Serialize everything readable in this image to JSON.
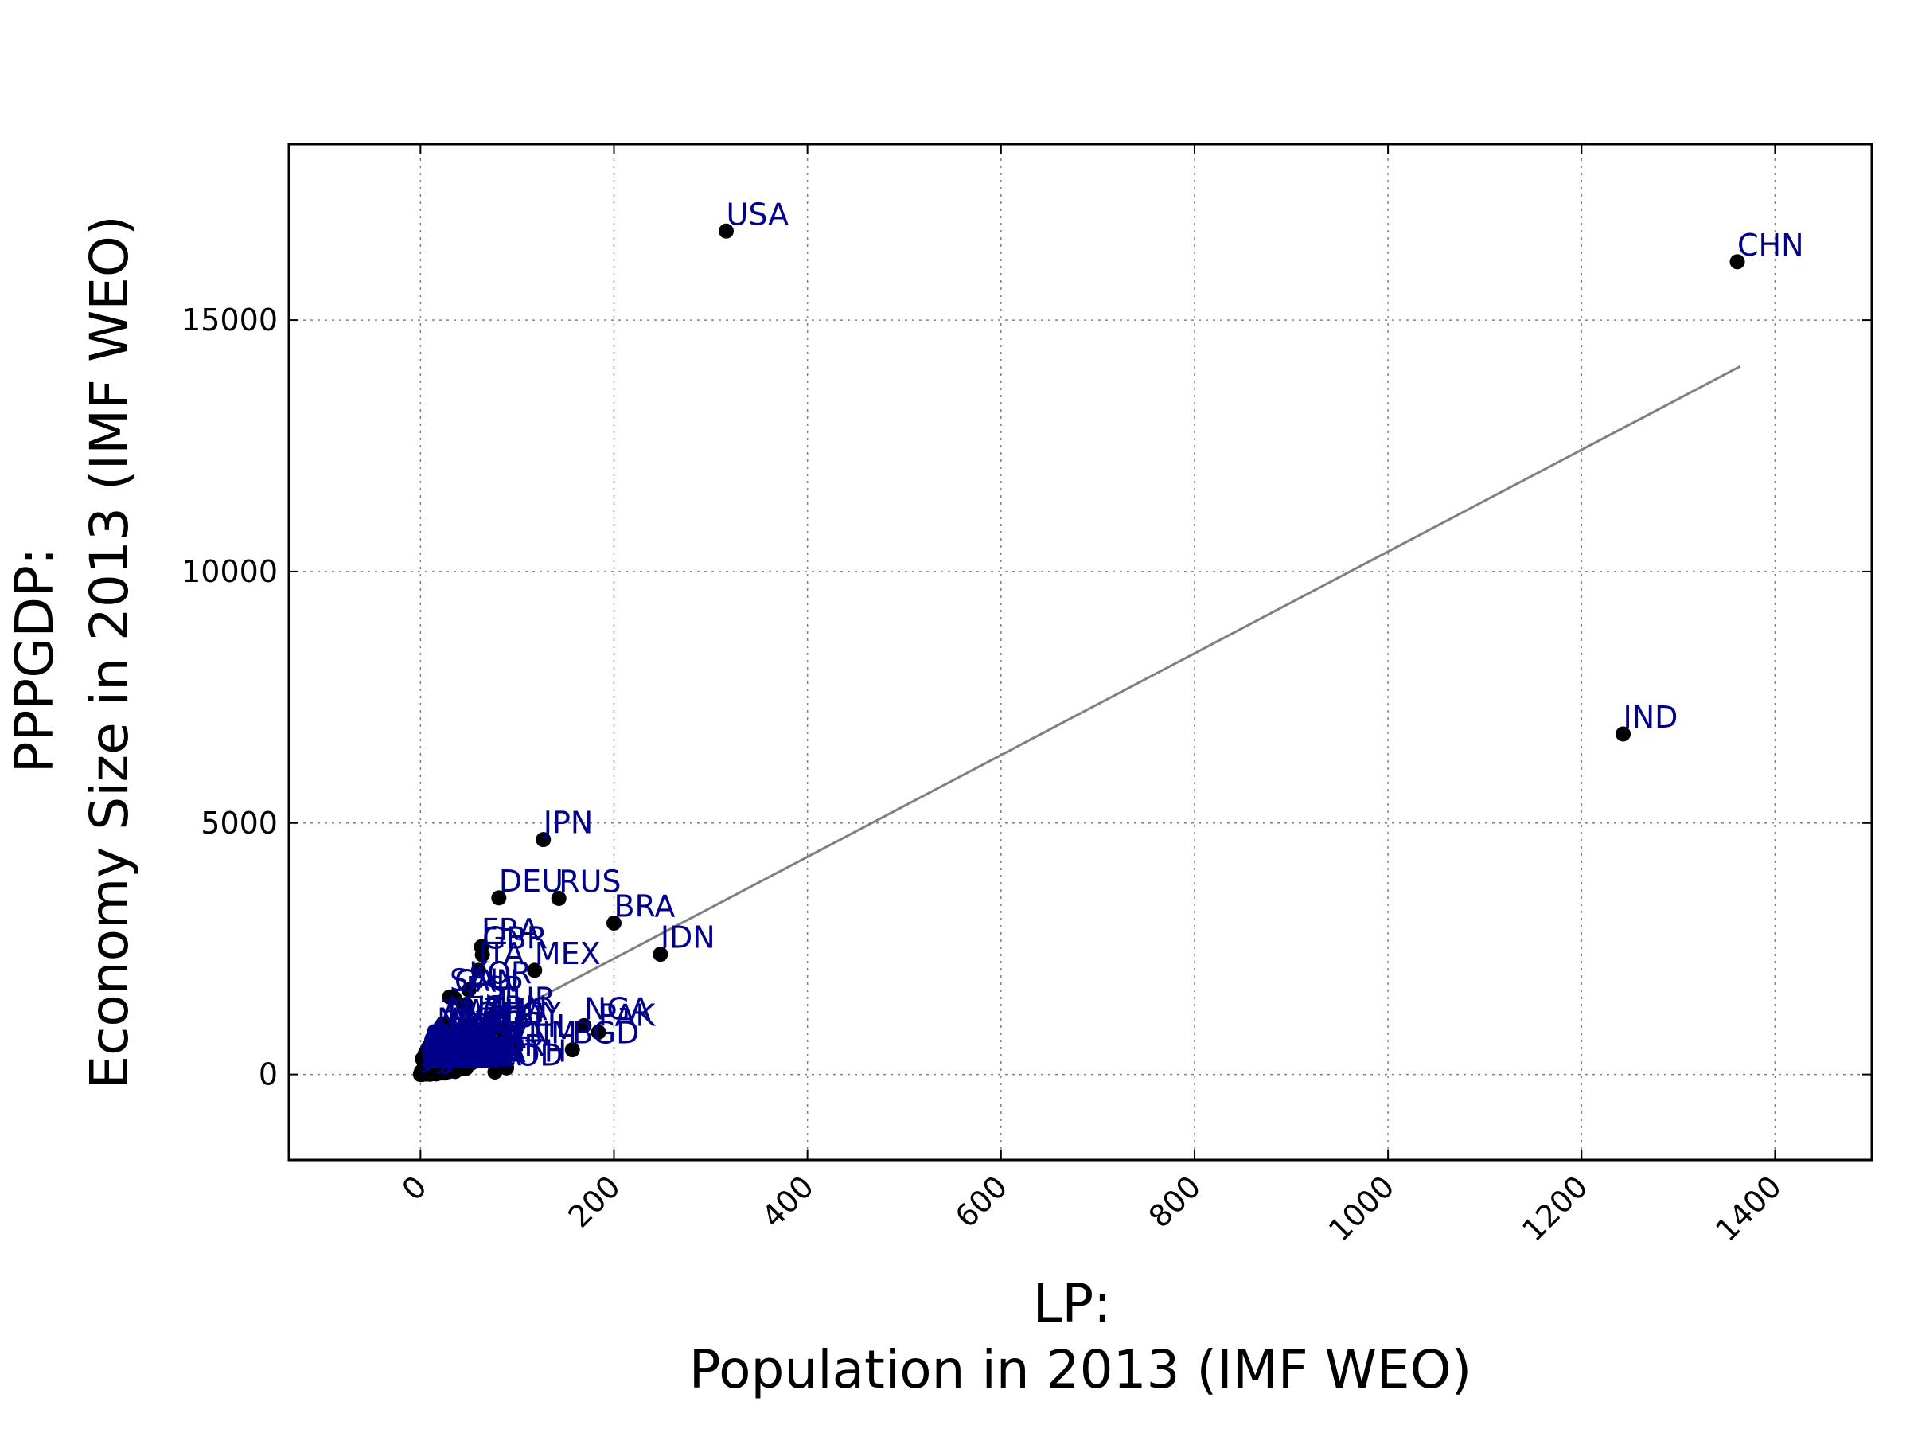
{
  "chart_data": {
    "type": "scatter",
    "xlabel_lines": [
      "LP:",
      "Population in 2013 (IMF WEO)"
    ],
    "ylabel_lines": [
      "PPPGDP:",
      "Economy Size in 2013 (IMF WEO)"
    ],
    "xlim": [
      -136,
      1500
    ],
    "ylim": [
      -1700,
      18500
    ],
    "xticks": [
      0,
      200,
      400,
      600,
      800,
      1000,
      1200,
      1400
    ],
    "yticks": [
      0,
      5000,
      10000,
      15000
    ],
    "grid": true,
    "colors": {
      "points": "#000000",
      "labels": "#00008b",
      "fit_line": "#808080",
      "axes": "#000000",
      "grid": "#808080"
    },
    "fit_line": {
      "x": [
        0,
        1364
      ],
      "y": [
        280,
        14080
      ]
    },
    "points": [
      {
        "label": "USA",
        "x": 316,
        "y": 16770
      },
      {
        "label": "CHN",
        "x": 1361,
        "y": 16160
      },
      {
        "label": "IND",
        "x": 1243,
        "y": 6770
      },
      {
        "label": "JPN",
        "x": 127,
        "y": 4670
      },
      {
        "label": "DEU",
        "x": 81,
        "y": 3510
      },
      {
        "label": "RUS",
        "x": 143,
        "y": 3500
      },
      {
        "label": "BRA",
        "x": 200,
        "y": 3010
      },
      {
        "label": "IDN",
        "x": 248,
        "y": 2390
      },
      {
        "label": "FRA",
        "x": 63,
        "y": 2540
      },
      {
        "label": "GBR",
        "x": 64,
        "y": 2380
      },
      {
        "label": "MEX",
        "x": 118,
        "y": 2070
      },
      {
        "label": "ITA",
        "x": 60,
        "y": 2070
      },
      {
        "label": "KOR",
        "x": 50,
        "y": 1680
      },
      {
        "label": "SAU",
        "x": 30,
        "y": 1540
      },
      {
        "label": "ESP",
        "x": 47,
        "y": 1390
      },
      {
        "label": "CAN",
        "x": 35,
        "y": 1520
      },
      {
        "label": "TUR",
        "x": 76,
        "y": 1170
      },
      {
        "label": "IRN",
        "x": 77,
        "y": 1000
      },
      {
        "label": "NGA",
        "x": 169,
        "y": 970
      },
      {
        "label": "PAK",
        "x": 184,
        "y": 840
      },
      {
        "label": "BGD",
        "x": 157,
        "y": 490
      },
      {
        "label": "THA",
        "x": 67,
        "y": 960
      },
      {
        "label": "EGY",
        "x": 84,
        "y": 880
      },
      {
        "label": "PHL",
        "x": 98,
        "y": 630
      },
      {
        "label": "VNM",
        "x": 90,
        "y": 490
      },
      {
        "label": "ETH",
        "x": 89,
        "y": 130
      },
      {
        "label": "COD",
        "x": 77,
        "y": 50
      },
      {
        "label": "ARG",
        "x": 42,
        "y": 770
      },
      {
        "label": "POL",
        "x": 38,
        "y": 880
      },
      {
        "label": "COL",
        "x": 48,
        "y": 580
      },
      {
        "label": "ZAF",
        "x": 53,
        "y": 650
      },
      {
        "label": "MYS",
        "x": 30,
        "y": 690
      },
      {
        "label": "AUS",
        "x": 23,
        "y": 1000
      },
      {
        "label": "TWN",
        "x": 23,
        "y": 930
      },
      {
        "label": "NLD",
        "x": 17,
        "y": 760
      },
      {
        "label": "UKR",
        "x": 45,
        "y": 400
      },
      {
        "label": "DZA",
        "x": 38,
        "y": 500
      },
      {
        "label": "PER",
        "x": 31,
        "y": 350
      },
      {
        "label": "VEN",
        "x": 30,
        "y": 540
      },
      {
        "label": "MAR",
        "x": 33,
        "y": 240
      },
      {
        "label": "UZB",
        "x": 30,
        "y": 160
      },
      {
        "label": "IRQ",
        "x": 35,
        "y": 500
      },
      {
        "label": "KEN",
        "x": 44,
        "y": 120
      },
      {
        "label": "TZA",
        "x": 47,
        "y": 120
      },
      {
        "label": "SDN",
        "x": 38,
        "y": 160
      },
      {
        "label": "MMR",
        "x": 53,
        "y": 230
      },
      {
        "label": "AFG",
        "x": 30,
        "y": 60
      },
      {
        "label": "UGA",
        "x": 36,
        "y": 60
      },
      {
        "label": "NPL",
        "x": 27,
        "y": 60
      },
      {
        "label": "GHA",
        "x": 26,
        "y": 100
      },
      {
        "label": "MOZ",
        "x": 25,
        "y": 30
      },
      {
        "label": "CHL",
        "x": 18,
        "y": 380
      },
      {
        "label": "ROU",
        "x": 20,
        "y": 370
      },
      {
        "label": "KAZ",
        "x": 17,
        "y": 390
      },
      {
        "label": "SWE",
        "x": 10,
        "y": 420
      },
      {
        "label": "BEL",
        "x": 11,
        "y": 460
      },
      {
        "label": "CHE",
        "x": 8,
        "y": 430
      },
      {
        "label": "AUT",
        "x": 8,
        "y": 370
      },
      {
        "label": "ARE",
        "x": 9,
        "y": 560
      },
      {
        "label": "SGP",
        "x": 5,
        "y": 420
      },
      {
        "label": "HKG",
        "x": 7,
        "y": 380
      },
      {
        "label": "NOR",
        "x": 5,
        "y": 330
      },
      {
        "label": "QAT",
        "x": 2,
        "y": 310
      },
      {
        "label": "KWT",
        "x": 4,
        "y": 280
      },
      {
        "label": "CZE",
        "x": 10,
        "y": 290
      },
      {
        "label": "PRT",
        "x": 10,
        "y": 270
      },
      {
        "label": "GRC",
        "x": 11,
        "y": 280
      },
      {
        "label": "ISR",
        "x": 8,
        "y": 260
      },
      {
        "label": "DNK",
        "x": 6,
        "y": 240
      },
      {
        "label": "IRL",
        "x": 5,
        "y": 210
      },
      {
        "label": "FIN",
        "x": 5,
        "y": 210
      },
      {
        "label": "HUN",
        "x": 10,
        "y": 230
      },
      {
        "label": "NZL",
        "x": 4,
        "y": 150
      },
      {
        "label": "SVK",
        "x": 5,
        "y": 140
      },
      {
        "label": "ECU",
        "x": 16,
        "y": 180
      },
      {
        "label": "LKA",
        "x": 20,
        "y": 200
      },
      {
        "label": "AZE",
        "x": 9,
        "y": 160
      },
      {
        "label": "BLR",
        "x": 9,
        "y": 170
      },
      {
        "label": "TUN",
        "x": 11,
        "y": 120
      },
      {
        "label": "DOM",
        "x": 10,
        "y": 130
      },
      {
        "label": "GTM",
        "x": 15,
        "y": 110
      },
      {
        "label": "OMN",
        "x": 4,
        "y": 160
      },
      {
        "label": "ZMB",
        "x": 15,
        "y": 60
      },
      {
        "label": "YEM",
        "x": 25,
        "y": 100
      },
      {
        "label": "SYR",
        "x": 22,
        "y": 110
      },
      {
        "label": "CMR",
        "x": 22,
        "y": 60
      },
      {
        "label": "CIV",
        "x": 24,
        "y": 60
      },
      {
        "label": "MDG",
        "x": 22,
        "y": 30
      },
      {
        "label": "AGO",
        "x": 21,
        "y": 170
      },
      {
        "label": "PRK",
        "x": 25,
        "y": 40
      },
      {
        "label": "KHM",
        "x": 15,
        "y": 40
      },
      {
        "label": "SEN",
        "x": 14,
        "y": 30
      },
      {
        "label": "MLI",
        "x": 16,
        "y": 25
      },
      {
        "label": "NER",
        "x": 17,
        "y": 15
      },
      {
        "label": "BFA",
        "x": 17,
        "y": 25
      },
      {
        "label": "MWI",
        "x": 16,
        "y": 12
      },
      {
        "label": "SOM",
        "x": 10,
        "y": 6
      },
      {
        "label": "BDI",
        "x": 10,
        "y": 8
      },
      {
        "label": "RWA",
        "x": 11,
        "y": 17
      },
      {
        "label": "TCD",
        "x": 13,
        "y": 28
      },
      {
        "label": "GIN",
        "x": 11,
        "y": 14
      },
      {
        "label": "BEN",
        "x": 10,
        "y": 18
      },
      {
        "label": "HTI",
        "x": 10,
        "y": 18
      },
      {
        "label": "BOL",
        "x": 11,
        "y": 60
      },
      {
        "label": "CUB",
        "x": 11,
        "y": 120
      },
      {
        "label": "BGR",
        "x": 7,
        "y": 110
      },
      {
        "label": "SRB",
        "x": 7,
        "y": 90
      },
      {
        "label": "HRV",
        "x": 4,
        "y": 90
      },
      {
        "label": "LBY",
        "x": 6,
        "y": 100
      },
      {
        "label": "TKM",
        "x": 5,
        "y": 70
      },
      {
        "label": "PRY",
        "x": 7,
        "y": 50
      },
      {
        "label": "JOR",
        "x": 7,
        "y": 80
      },
      {
        "label": "HND",
        "x": 8,
        "y": 40
      },
      {
        "label": "SLV",
        "x": 6,
        "y": 50
      },
      {
        "label": "NIC",
        "x": 6,
        "y": 30
      },
      {
        "label": "TJK",
        "x": 8,
        "y": 20
      },
      {
        "label": "KGZ",
        "x": 6,
        "y": 18
      },
      {
        "label": "LAO",
        "x": 7,
        "y": 30
      },
      {
        "label": "PNG",
        "x": 7,
        "y": 20
      },
      {
        "label": "TGO",
        "x": 7,
        "y": 10
      },
      {
        "label": "SLE",
        "x": 6,
        "y": 10
      },
      {
        "label": "LBN",
        "x": 4,
        "y": 80
      },
      {
        "label": "CRI",
        "x": 5,
        "y": 70
      },
      {
        "label": "PAN",
        "x": 4,
        "y": 70
      },
      {
        "label": "URY",
        "x": 3,
        "y": 60
      },
      {
        "label": "LTU",
        "x": 3,
        "y": 80
      },
      {
        "label": "SVN",
        "x": 2,
        "y": 60
      },
      {
        "label": "BHR",
        "x": 1,
        "y": 60
      },
      {
        "label": "LVA",
        "x": 2,
        "y": 45
      },
      {
        "label": "EST",
        "x": 1,
        "y": 35
      },
      {
        "label": "GEO",
        "x": 4,
        "y": 30
      },
      {
        "label": "ARM",
        "x": 3,
        "y": 22
      },
      {
        "label": "MNG",
        "x": 3,
        "y": 25
      },
      {
        "label": "BIH",
        "x": 4,
        "y": 35
      },
      {
        "label": "ALB",
        "x": 3,
        "y": 28
      },
      {
        "label": "MKD",
        "x": 2,
        "y": 25
      },
      {
        "label": "MDA",
        "x": 3,
        "y": 15
      },
      {
        "label": "TTO",
        "x": 1,
        "y": 40
      },
      {
        "label": "BWA",
        "x": 2,
        "y": 30
      },
      {
        "label": "NAM",
        "x": 2,
        "y": 20
      },
      {
        "label": "GAB",
        "x": 2,
        "y": 30
      },
      {
        "label": "JAM",
        "x": 3,
        "y": 24
      },
      {
        "label": "MUS",
        "x": 1,
        "y": 22
      },
      {
        "label": "CYP",
        "x": 1,
        "y": 24
      },
      {
        "label": "LUX",
        "x": 1,
        "y": 48
      },
      {
        "label": "ISL",
        "x": 0.3,
        "y": 14
      },
      {
        "label": "MLT",
        "x": 0.4,
        "y": 13
      },
      {
        "label": "BRN",
        "x": 0.4,
        "y": 30
      },
      {
        "label": "MNE",
        "x": 0.6,
        "y": 9
      },
      {
        "label": "FJI",
        "x": 0.9,
        "y": 7
      },
      {
        "label": "BHS",
        "x": 0.4,
        "y": 9
      },
      {
        "label": "BLZ",
        "x": 0.3,
        "y": 3
      },
      {
        "label": "BTN",
        "x": 0.7,
        "y": 5
      },
      {
        "label": "MDV",
        "x": 0.3,
        "y": 4
      },
      {
        "label": "GUY",
        "x": 0.8,
        "y": 5
      },
      {
        "label": "SUR",
        "x": 0.5,
        "y": 8
      },
      {
        "label": "SWZ",
        "x": 1.1,
        "y": 7
      },
      {
        "label": "LSO",
        "x": 1.9,
        "y": 4
      },
      {
        "label": "GMB",
        "x": 1.9,
        "y": 3
      },
      {
        "label": "GNB",
        "x": 1.7,
        "y": 2
      },
      {
        "label": "DJI",
        "x": 0.9,
        "y": 3
      },
      {
        "label": "TLS",
        "x": 1.1,
        "y": 4
      },
      {
        "label": "CPV",
        "x": 0.5,
        "y": 2
      },
      {
        "label": "COM",
        "x": 0.7,
        "y": 1
      },
      {
        "label": "STP",
        "x": 0.2,
        "y": 0.6
      },
      {
        "label": "TON",
        "x": 0.1,
        "y": 0.5
      },
      {
        "label": "KIR",
        "x": 0.1,
        "y": 0.2
      },
      {
        "label": "TUV",
        "x": 0.01,
        "y": 0.04
      }
    ]
  }
}
